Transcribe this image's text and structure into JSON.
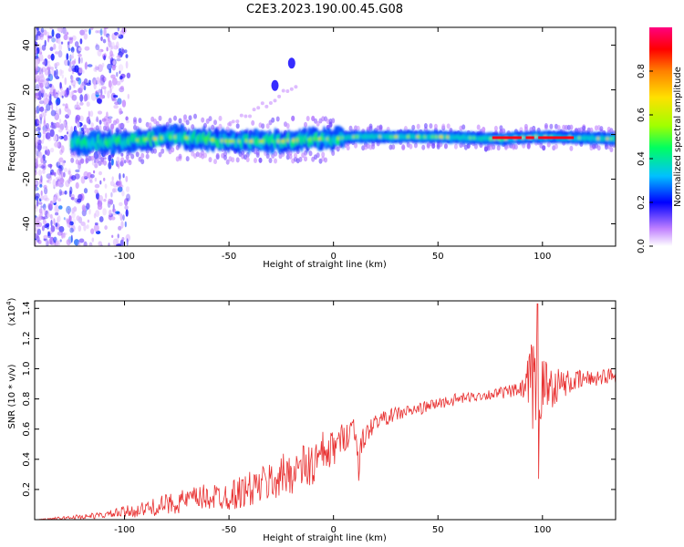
{
  "title": "C2E3.2023.190.00.45.G08",
  "chart_data": [
    {
      "type": "heatmap",
      "xlabel": "Height of straight line (km)",
      "ylabel": "Frequency (Hz)",
      "xlim": [
        -143,
        135
      ],
      "ylim": [
        -50,
        48
      ],
      "x_ticks": [
        -100,
        -50,
        0,
        50,
        100
      ],
      "y_ticks": [
        -40,
        -20,
        0,
        20,
        40
      ],
      "grid": false,
      "colorbar": {
        "label": "Normalized spectral amplitude",
        "range": [
          0,
          1
        ],
        "ticks": [
          0.0,
          0.2,
          0.4,
          0.6,
          0.8
        ],
        "colormap": [
          "#ffffff",
          "#c080ff",
          "#0000ff",
          "#00c0ff",
          "#00ff60",
          "#a0ff00",
          "#ffe000",
          "#ff8000",
          "#ff0000",
          "#ff0080"
        ]
      },
      "ridge_center_hz": [
        {
          "x": -125,
          "f": -4
        },
        {
          "x": -100,
          "f": -3
        },
        {
          "x": -75,
          "f": -1
        },
        {
          "x": -50,
          "f": -3
        },
        {
          "x": -25,
          "f": -3
        },
        {
          "x": -10,
          "f": -2
        },
        {
          "x": 0,
          "f": -2
        },
        {
          "x": 10,
          "f": -1
        },
        {
          "x": 50,
          "f": -1
        },
        {
          "x": 80,
          "f": -2
        },
        {
          "x": 100,
          "f": -1
        },
        {
          "x": 135,
          "f": -2
        }
      ],
      "features": [
        {
          "x": -20,
          "f": 32,
          "label": ""
        },
        {
          "x": -28,
          "f": 22,
          "label": ""
        }
      ]
    },
    {
      "type": "line",
      "xlabel": "Height of straight line (km)",
      "ylabel": "SNR (10 * v/v)",
      "y_scale_label": "(x10",
      "y_scale_exp": "4",
      "y_scale_close": ")",
      "xlim": [
        -143,
        135
      ],
      "ylim": [
        0,
        1.45
      ],
      "x_ticks": [
        -100,
        -50,
        0,
        50,
        100
      ],
      "y_ticks": [
        0.2,
        0.4,
        0.6,
        0.8,
        1.0,
        1.2,
        1.4
      ],
      "line_color": "#e83030",
      "series": [
        {
          "x": [
            -143,
            -130,
            -120,
            -110,
            -100,
            -90,
            -80,
            -70,
            -60,
            -50,
            -40,
            -30,
            -20,
            -10,
            -5,
            0,
            5,
            10,
            12,
            15,
            20,
            30,
            40,
            50,
            60,
            70,
            80,
            90,
            95,
            100,
            110,
            120,
            135
          ],
          "values": [
            0.0,
            0.01,
            0.02,
            0.03,
            0.05,
            0.07,
            0.1,
            0.13,
            0.15,
            0.16,
            0.2,
            0.25,
            0.32,
            0.36,
            0.42,
            0.47,
            0.55,
            0.62,
            0.4,
            0.55,
            0.65,
            0.7,
            0.73,
            0.77,
            0.8,
            0.82,
            0.84,
            0.86,
            0.86,
            0.88,
            0.9,
            0.93,
            0.96
          ],
          "noise": [
            0.0,
            0.01,
            0.02,
            0.02,
            0.04,
            0.05,
            0.07,
            0.08,
            0.09,
            0.1,
            0.12,
            0.14,
            0.15,
            0.17,
            0.17,
            0.12,
            0.1,
            0.1,
            0.15,
            0.08,
            0.05,
            0.05,
            0.04,
            0.04,
            0.04,
            0.03,
            0.04,
            0.05,
            0.35,
            0.2,
            0.09,
            0.06,
            0.05
          ]
        }
      ]
    }
  ]
}
